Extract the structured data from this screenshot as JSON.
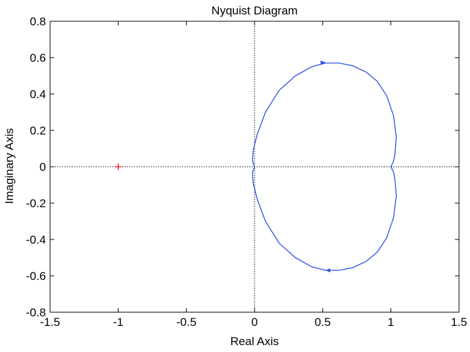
{
  "chart_data": {
    "type": "line",
    "title": "Nyquist Diagram",
    "xlabel": "Real Axis",
    "ylabel": "Imaginary Axis",
    "xlim": [
      -1.5,
      1.5
    ],
    "ylim": [
      -0.8,
      0.8
    ],
    "xticks": [
      -1.5,
      -1,
      -0.5,
      0,
      0.5,
      1,
      1.5
    ],
    "xtick_labels": [
      "-1.5",
      "-1",
      "-0.5",
      "0",
      "0.5",
      "1",
      "1.5"
    ],
    "yticks": [
      -0.8,
      -0.6,
      -0.4,
      -0.2,
      0,
      0.2,
      0.4,
      0.6,
      0.8
    ],
    "ytick_labels": [
      "-0.8",
      "-0.6",
      "-0.4",
      "-0.2",
      "0",
      "0.2",
      "0.4",
      "0.6",
      "0.8"
    ],
    "grid": false,
    "colors": {
      "curve": "#2b4fe0",
      "critical_point": "#ff0000",
      "reference_lines": "#000000"
    },
    "critical_point": {
      "x": -1,
      "y": 0,
      "marker": "+"
    },
    "series": [
      {
        "x": [
          1.0,
          1.02,
          1.03,
          1.04,
          1.02,
          0.97,
          0.9,
          0.82,
          0.72,
          0.62,
          0.52,
          0.42,
          0.3,
          0.18,
          0.08,
          0.02,
          -0.01,
          -0.015,
          0.0,
          -0.015,
          -0.01,
          0.02,
          0.08,
          0.18,
          0.3,
          0.42,
          0.52,
          0.62,
          0.72,
          0.82,
          0.9,
          0.97,
          1.02,
          1.04,
          1.03,
          1.02,
          1.0
        ],
        "y": [
          0.0,
          0.03,
          0.07,
          0.16,
          0.28,
          0.39,
          0.47,
          0.52,
          0.555,
          0.57,
          0.57,
          0.55,
          0.5,
          0.42,
          0.3,
          0.18,
          0.09,
          0.03,
          0.0,
          -0.03,
          -0.09,
          -0.18,
          -0.3,
          -0.42,
          -0.5,
          -0.55,
          -0.57,
          -0.57,
          -0.555,
          -0.52,
          -0.47,
          -0.39,
          -0.28,
          -0.16,
          -0.07,
          -0.03,
          0.0
        ]
      }
    ],
    "arrows": [
      {
        "x": 0.5,
        "y": 0.573,
        "direction": "right"
      },
      {
        "x": 0.54,
        "y": -0.57,
        "direction": "left"
      }
    ]
  }
}
